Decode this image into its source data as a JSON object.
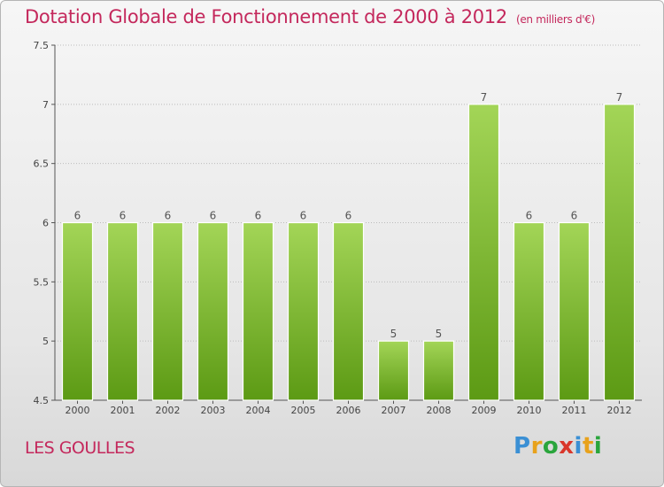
{
  "title": "Dotation Globale de Fonctionnement de 2000 à 2012",
  "unit_note": "(en milliers d'€)",
  "commune": "LES GOULLES",
  "logo": {
    "text": "Proxiti",
    "letter_colors": [
      "#3a8fd4",
      "#e8a21c",
      "#2aa53c",
      "#d9372b",
      "#3a8fd4",
      "#e8a21c",
      "#2aa53c"
    ]
  },
  "colors": {
    "bar_top": "#a3d557",
    "bar_bottom": "#5c9a14",
    "title": "#c4285c",
    "grid": "#bbbbbb"
  },
  "chart_data": {
    "type": "bar",
    "categories": [
      "2000",
      "2001",
      "2002",
      "2003",
      "2004",
      "2005",
      "2006",
      "2007",
      "2008",
      "2009",
      "2010",
      "2011",
      "2012"
    ],
    "values": [
      6,
      6,
      6,
      6,
      6,
      6,
      6,
      5,
      5,
      7,
      6,
      6,
      7
    ],
    "data_labels": [
      "6",
      "6",
      "6",
      "6",
      "6",
      "6",
      "6",
      "5",
      "5",
      "7",
      "6",
      "6",
      "7"
    ],
    "ylim": [
      4.5,
      7.5
    ],
    "yticks": [
      "4.5",
      "5",
      "5.5",
      "6",
      "6.5",
      "7",
      "7.5"
    ],
    "grid": true,
    "xlabel": "",
    "ylabel": ""
  }
}
